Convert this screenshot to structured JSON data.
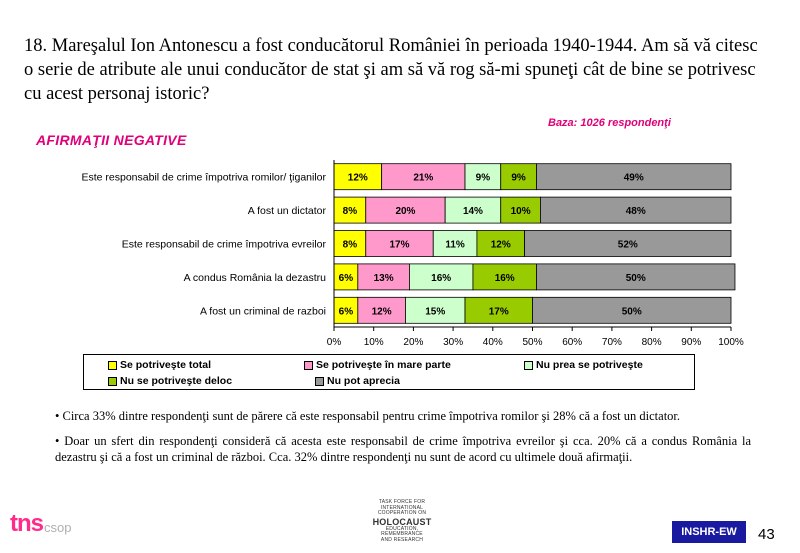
{
  "question": "18. Mareşalul Ion Antonescu a fost conducătorul României în perioada 1940-1944. Am să vă citesc o serie de atribute ale unui conducător de stat şi am să vă rog să-mi spuneţi cât de bine se potrivesc cu acest personaj istoric?",
  "base_label": "Baza: 1026 respondenţi",
  "section_label": "AFIRMAŢII NEGATIVE",
  "chart_data": {
    "type": "bar",
    "orientation": "horizontal",
    "stacked": true,
    "percent_stacked": true,
    "categories": [
      "Este responsabil de crime împotriva romilor/ ţiganilor",
      "A fost un dictator",
      "Este responsabil de crime împotriva evreilor",
      "A condus România la dezastru",
      "A fost un criminal de razboi"
    ],
    "series": [
      {
        "name": "Se potriveşte total",
        "color": "#ffff00",
        "values": [
          12,
          8,
          8,
          6,
          6
        ],
        "labels": [
          "12%",
          "8%",
          "8%",
          "6%",
          "6%"
        ]
      },
      {
        "name": "Se potriveşte în mare parte",
        "color": "#ff99cc",
        "values": [
          21,
          20,
          17,
          13,
          12
        ],
        "labels": [
          "21%",
          "20%",
          "17%",
          "13%",
          "12%"
        ]
      },
      {
        "name": "Nu prea se potriveşte",
        "color": "#ccffcc",
        "values": [
          9,
          14,
          11,
          16,
          15
        ],
        "labels": [
          "9%",
          "14%",
          "11%",
          "16%",
          "15%"
        ]
      },
      {
        "name": "Nu se potriveşte deloc",
        "color": "#99cc00",
        "values": [
          9,
          10,
          12,
          16,
          17
        ],
        "labels": [
          "9%",
          "10%",
          "12%",
          "16%",
          "17%"
        ]
      },
      {
        "name": "Nu pot aprecia",
        "color": "#999999",
        "values": [
          49,
          48,
          52,
          50,
          50
        ],
        "labels": [
          "49%",
          "48%",
          "52%",
          "50%",
          "50%"
        ]
      }
    ],
    "xlim": [
      0,
      100
    ],
    "x_ticks": [
      "0%",
      "10%",
      "20%",
      "30%",
      "40%",
      "50%",
      "60%",
      "70%",
      "80%",
      "90%",
      "100%"
    ],
    "grid": false,
    "legend_position": "bottom"
  },
  "legend": [
    {
      "label": "Se potriveşte total",
      "color": "#ffff00"
    },
    {
      "label": "Se potriveşte în mare parte",
      "color": "#ff99cc"
    },
    {
      "label": "Nu prea se potriveşte",
      "color": "#ccffcc"
    },
    {
      "label": "Nu se potriveşte deloc",
      "color": "#99cc00"
    },
    {
      "label": "Nu pot aprecia",
      "color": "#999999"
    }
  ],
  "bullets": [
    "• Circa 33% dintre respondenţi sunt de părere că este responsabil pentru crime împotriva romilor şi 28% că a fost un dictator.",
    "• Doar un sfert din respondenţi consideră că acesta este responsabil de crime împotriva evreilor şi cca. 20% că a condus România la dezastru şi că a fost un criminal de război. Cca. 32% dintre respondenţi nu sunt de acord cu ultimele două afirmaţii."
  ],
  "footer": {
    "logo_main": "tns",
    "logo_sub": "csop",
    "task_force_lines": [
      "TASK FORCE FOR",
      "INTERNATIONAL",
      "COOPERATION ON",
      "HOLOCAUST",
      "EDUCATION,",
      "REMEMBRANCE",
      "AND RESEARCH"
    ],
    "badge": "INSHR-EW",
    "page_number": "43"
  }
}
